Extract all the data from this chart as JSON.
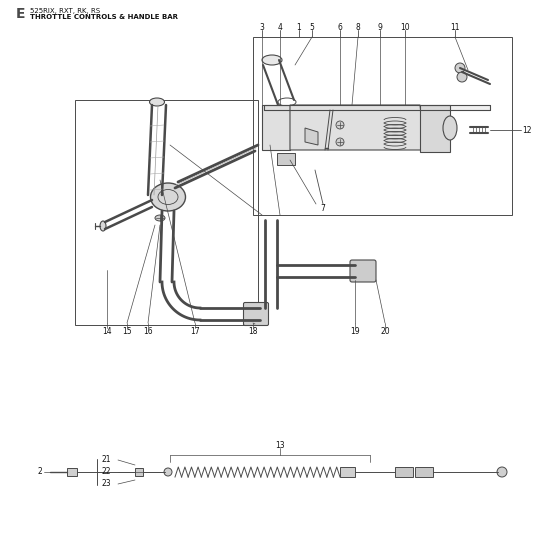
{
  "title_letter": "E",
  "title_models": "525RIX, RXT, RK, RS",
  "title_desc": "THROTTLE CONTROLS & HANDLE BAR",
  "bg_color": "#ffffff",
  "line_color": "#4a4a4a",
  "label_color": "#111111",
  "fig_width": 5.6,
  "fig_height": 5.6,
  "dpi": 100
}
